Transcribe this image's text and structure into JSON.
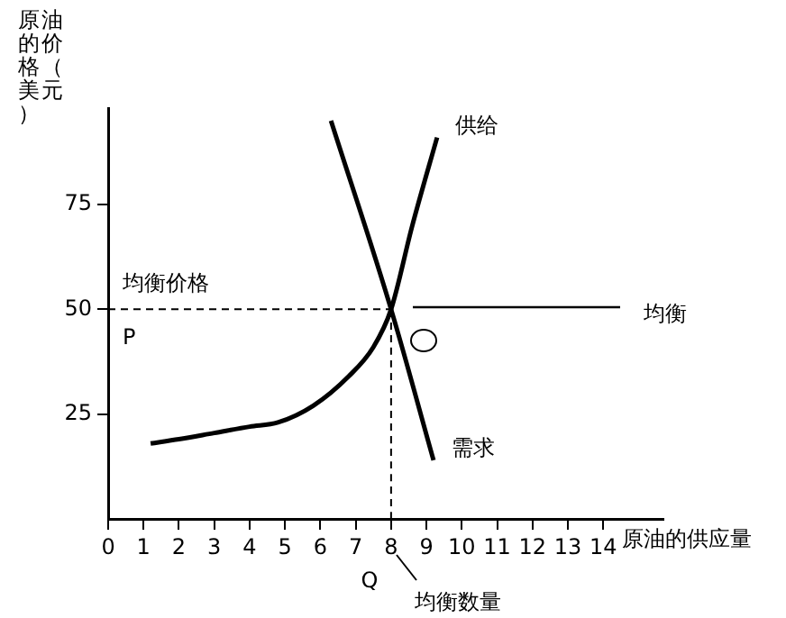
{
  "chart_data": {
    "type": "line",
    "xlabel": "原油的供应量",
    "ylabel": "原油的价格（美元）",
    "xlim": [
      0,
      15.7
    ],
    "xticks": [
      0,
      1,
      2,
      3,
      4,
      5,
      6,
      7,
      8,
      9,
      10,
      11,
      12,
      13,
      14
    ],
    "ylim": [
      0,
      98
    ],
    "yticks": [
      25,
      50,
      75
    ],
    "grid": false,
    "legend": false,
    "marker": "none",
    "series": [
      {
        "name": "供给",
        "color": "#000000",
        "x": [
          1.2,
          2,
          3,
          4,
          4.8,
          5.8,
          6.8,
          7.5,
          8,
          8.6,
          9.3
        ],
        "values": [
          18,
          19,
          20.5,
          22,
          23,
          27,
          34,
          41,
          50,
          70,
          91
        ]
      },
      {
        "name": "需求",
        "color": "#000000",
        "x": [
          6.3,
          8,
          9.2
        ],
        "values": [
          95,
          50,
          14
        ]
      },
      {
        "color": "#000000",
        "line_style": "dashed",
        "x": [
          0,
          8
        ],
        "values": [
          50,
          50
        ]
      },
      {
        "color": "#000000",
        "line_style": "dashed",
        "x": [
          8,
          8
        ],
        "values": [
          0,
          50
        ]
      }
    ],
    "annotations": [
      "均衡价格",
      "P",
      "均衡",
      "Q",
      "均衡数量"
    ]
  }
}
